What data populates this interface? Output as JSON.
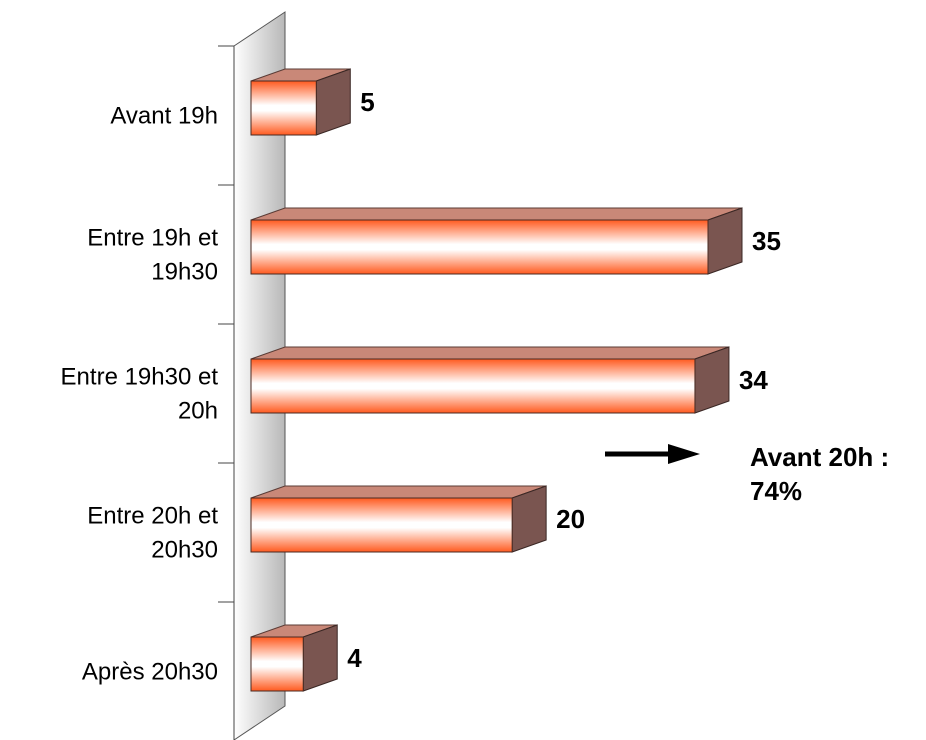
{
  "chart_data": {
    "type": "bar",
    "orientation": "horizontal",
    "categories": [
      "Avant 19h",
      "Entre 19h et 19h30",
      "Entre 19h30 et 20h",
      "Entre 20h et 20h30",
      "Après 20h30"
    ],
    "category_lines": [
      [
        "Avant 19h"
      ],
      [
        "Entre 19h et",
        "19h30"
      ],
      [
        "Entre 19h30 et",
        "20h"
      ],
      [
        "Entre 20h et",
        "20h30"
      ],
      [
        "Après 20h30"
      ]
    ],
    "values": [
      5,
      35,
      34,
      20,
      4
    ],
    "data_labels": [
      "5",
      "35",
      "34",
      "20",
      "4"
    ],
    "xlim": [
      0,
      35
    ],
    "grid": false,
    "legend": "none",
    "style": "3d-bar",
    "colors": {
      "bar_edge": "#ff5a1f",
      "bar_mid": "#ffffff",
      "bar_top": "#c98878",
      "bar_side": "#7a5550",
      "wall": "#cccccc"
    },
    "annotation": {
      "line1": "Avant 20h :",
      "line2": "74%"
    }
  }
}
